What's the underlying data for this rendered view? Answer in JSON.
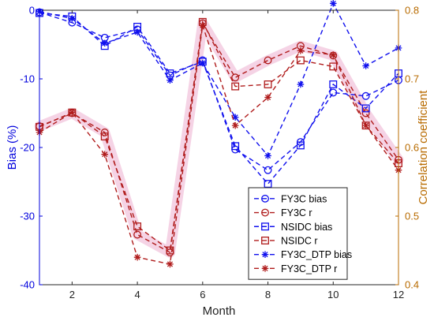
{
  "chart_data": {
    "type": "line",
    "xlabel": "Month",
    "ylabel_left": "Bias (%)",
    "ylabel_right": "Correlation coefficient",
    "xlim": [
      1,
      12
    ],
    "ylim_left": [
      -40,
      0
    ],
    "ylim_right": [
      0.4,
      0.8
    ],
    "xticks": [
      "2",
      "4",
      "6",
      "8",
      "10",
      "12"
    ],
    "yticks_left": [
      "0",
      "-10",
      "-20",
      "-30",
      "-40"
    ],
    "yticks_right": [
      "0.8",
      "0.7",
      "0.6",
      "0.5",
      "0.4"
    ],
    "x": [
      1,
      2,
      3,
      4,
      5,
      6,
      7,
      8,
      9,
      10,
      11,
      12
    ],
    "legend_location": "lower-right",
    "colors": {
      "left_axis": "#0000dd",
      "right_axis": "#b86b00",
      "bias": "#1010ee",
      "r": "#b01c1c",
      "glow": "#f2c4dc"
    },
    "series": [
      {
        "name": "FY3C bias",
        "axis": "left",
        "marker": "circle",
        "color": "#1010ee",
        "values": [
          -0.3,
          -1.8,
          -4.0,
          -2.8,
          -9.5,
          -7.3,
          -20.3,
          -23.3,
          -19.2,
          -12.0,
          -12.5,
          -10.2
        ]
      },
      {
        "name": "FY3C r",
        "axis": "right",
        "marker": "circle",
        "color": "#b01c1c",
        "values": [
          0.631,
          0.65,
          0.622,
          0.473,
          0.447,
          0.781,
          0.702,
          0.727,
          0.748,
          0.734,
          0.65,
          0.582
        ]
      },
      {
        "name": "NSIDC bias",
        "axis": "left",
        "marker": "square",
        "color": "#1010ee",
        "values": [
          -0.4,
          -0.9,
          -5.2,
          -2.4,
          -9.2,
          -7.5,
          -19.8,
          -25.3,
          -19.7,
          -10.8,
          -14.3,
          -9.2
        ]
      },
      {
        "name": "NSIDC r",
        "axis": "right",
        "marker": "square",
        "color": "#b01c1c",
        "values": [
          0.63,
          0.651,
          0.616,
          0.485,
          0.45,
          0.783,
          0.689,
          0.692,
          0.727,
          0.718,
          0.632,
          0.577
        ]
      },
      {
        "name": "FY3C_DTP bias",
        "axis": "left",
        "marker": "asterisk",
        "color": "#1010ee",
        "values": [
          -0.2,
          -1.2,
          -4.8,
          -3.2,
          -10.2,
          -7.7,
          -15.6,
          -21.2,
          -10.8,
          1.0,
          -8.1,
          -5.5
        ]
      },
      {
        "name": "FY3C_DTP r",
        "axis": "right",
        "marker": "asterisk",
        "color": "#b01c1c",
        "values": [
          0.622,
          0.651,
          0.59,
          0.44,
          0.43,
          0.778,
          0.632,
          0.673,
          0.741,
          0.735,
          0.632,
          0.567
        ]
      }
    ]
  }
}
